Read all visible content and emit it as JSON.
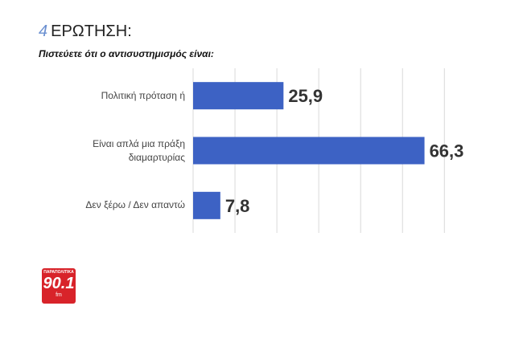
{
  "question_number": "4",
  "logo": {
    "brand": "ΠΑΡΑΠΟΛΙΤΙΚΑ",
    "number": "90.1",
    "unit": "fm"
  },
  "chart_data": {
    "type": "bar",
    "orientation": "horizontal",
    "title": "ΕΡΩΤΗΣΗ:",
    "subtitle": "Πιστεύετε ότι ο αντισυστημισμός είναι:",
    "categories": [
      "Πολιτική πρόταση ή",
      "Είναι απλά μια πράξη διαμαρτυρίας",
      "Δεν ξέρω / Δεν απαντώ"
    ],
    "values": [
      25.9,
      66.3,
      7.8
    ],
    "value_labels": [
      "25,9",
      "66,3",
      "7,8"
    ],
    "color": "#3d62c4",
    "xlim": [
      0,
      83
    ],
    "xticks": [
      0,
      12,
      24,
      36,
      48,
      60,
      72
    ],
    "grid": true
  }
}
